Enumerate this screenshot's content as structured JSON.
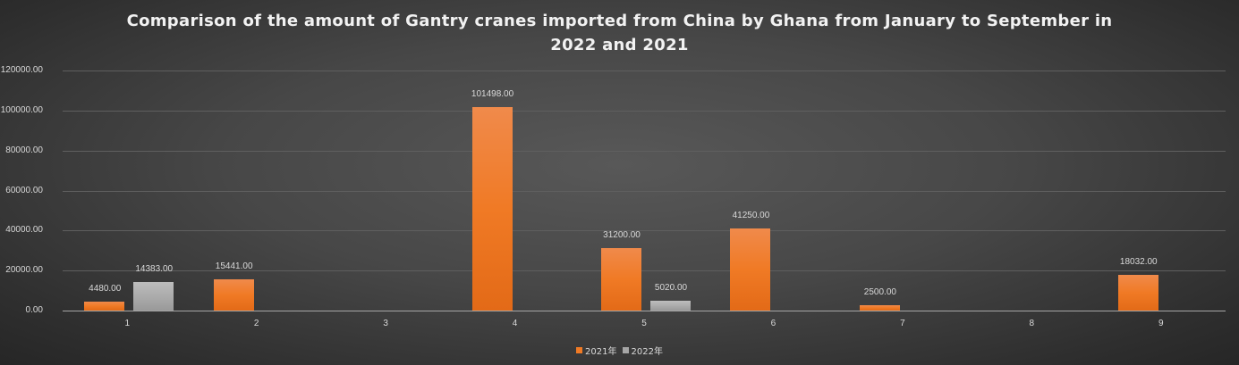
{
  "chart_data": {
    "type": "bar",
    "title": "Comparison of the amount of Gantry cranes imported from China by Ghana from January to September in 2022 and 2021",
    "title_lines": [
      "Comparison of the amount of Gantry cranes imported from China by Ghana from January to September in",
      "2022 and 2021"
    ],
    "xlabel": "",
    "ylabel": "",
    "categories": [
      "1",
      "2",
      "3",
      "4",
      "5",
      "6",
      "7",
      "8",
      "9"
    ],
    "series": [
      {
        "name": "2021年",
        "color": "#f07a25",
        "values": [
          4480,
          15441,
          null,
          101498,
          31200,
          41250,
          2500,
          null,
          18032
        ],
        "labels": [
          "4480.00",
          "15441.00",
          "",
          "101498.00",
          "31200.00",
          "41250.00",
          "2500.00",
          "",
          "18032.00"
        ]
      },
      {
        "name": "2022年",
        "color": "#a6a6a6",
        "values": [
          14383,
          null,
          null,
          null,
          5020,
          null,
          null,
          null,
          null
        ],
        "labels": [
          "14383.00",
          "",
          "",
          "",
          "5020.00",
          "",
          "",
          "",
          ""
        ]
      }
    ],
    "ylim": [
      0,
      120000
    ],
    "yticks": [
      "0.00",
      "20000.00",
      "40000.00",
      "60000.00",
      "80000.00",
      "100000.00",
      "120000.00"
    ],
    "ytick_values": [
      0,
      20000,
      40000,
      60000,
      80000,
      100000,
      120000
    ],
    "grid": true,
    "legend_position": "bottom"
  }
}
